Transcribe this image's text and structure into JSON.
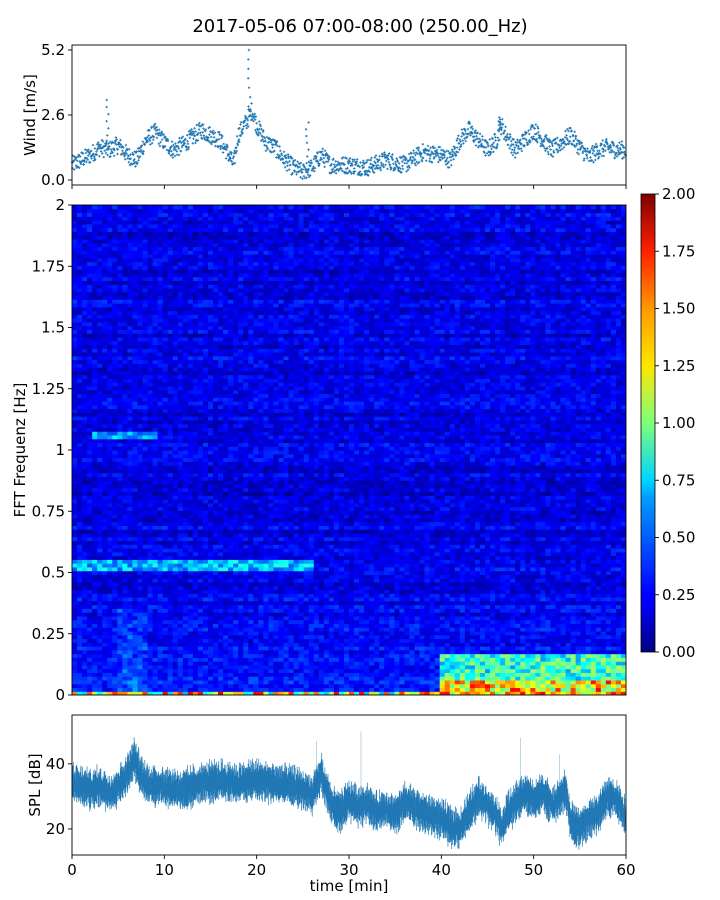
{
  "title": "2017-05-06 07:00-08:00 (250.00_Hz)",
  "chart_data": [
    {
      "type": "scatter",
      "ylabel": "Wind [m/s]",
      "ylim": [
        -0.2,
        5.4
      ],
      "yticks": [
        "0.0",
        "2.6",
        "5.2"
      ],
      "color": "#1f77b4",
      "xlim": [
        0,
        60
      ],
      "trend": [
        [
          0,
          0.6
        ],
        [
          2,
          1.0
        ],
        [
          3,
          1.3
        ],
        [
          4,
          1.2
        ],
        [
          5,
          1.4
        ],
        [
          6,
          1.0
        ],
        [
          7,
          0.8
        ],
        [
          8,
          1.6
        ],
        [
          9,
          1.9
        ],
        [
          10,
          1.5
        ],
        [
          11,
          1.2
        ],
        [
          12,
          1.4
        ],
        [
          13,
          1.7
        ],
        [
          14,
          2.0
        ],
        [
          15,
          1.8
        ],
        [
          16,
          1.6
        ],
        [
          17,
          1.0
        ],
        [
          17.5,
          0.6
        ],
        [
          18,
          1.8
        ],
        [
          19,
          2.4
        ],
        [
          19.5,
          2.8
        ],
        [
          20,
          2.2
        ],
        [
          21,
          1.5
        ],
        [
          22,
          1.3
        ],
        [
          23,
          0.8
        ],
        [
          24,
          0.5
        ],
        [
          25,
          0.3
        ],
        [
          26,
          0.5
        ],
        [
          27,
          1.0
        ],
        [
          28,
          0.6
        ],
        [
          30,
          0.6
        ],
        [
          32,
          0.5
        ],
        [
          34,
          0.8
        ],
        [
          36,
          0.6
        ],
        [
          38,
          1.1
        ],
        [
          40,
          1.0
        ],
        [
          41,
          0.8
        ],
        [
          42,
          1.6
        ],
        [
          43,
          2.0
        ],
        [
          44,
          1.6
        ],
        [
          45,
          1.2
        ],
        [
          46,
          1.6
        ],
        [
          46.5,
          2.2
        ],
        [
          47,
          1.8
        ],
        [
          48,
          1.2
        ],
        [
          49,
          1.6
        ],
        [
          50,
          2.0
        ],
        [
          51,
          1.6
        ],
        [
          52,
          1.2
        ],
        [
          53,
          1.5
        ],
        [
          54,
          1.8
        ],
        [
          55,
          1.3
        ],
        [
          56,
          0.9
        ],
        [
          57,
          1.2
        ],
        [
          58,
          1.3
        ],
        [
          59,
          1.2
        ],
        [
          60,
          1.2
        ]
      ],
      "spikes": [
        [
          3.8,
          3.2
        ],
        [
          19.2,
          5.2
        ],
        [
          25.5,
          2.3
        ],
        [
          46.3,
          2.5
        ]
      ]
    },
    {
      "type": "heatmap",
      "ylabel": "FFT Frequenz [Hz]",
      "ylim": [
        0,
        2
      ],
      "yticks": [
        "0",
        "0.25",
        "0.5",
        "0.75",
        "1",
        "1.25",
        "1.5",
        "1.75",
        "2"
      ],
      "xlim": [
        0,
        60
      ],
      "colorbar": {
        "range": [
          0,
          2
        ],
        "ticks": [
          "0.00",
          "0.25",
          "0.50",
          "0.75",
          "1.00",
          "1.25",
          "1.50",
          "1.75",
          "2.00"
        ],
        "colormap": "jet"
      },
      "features": [
        {
          "band": [
            0.515,
            0.535
          ],
          "x": [
            0,
            26
          ],
          "level": 0.75
        },
        {
          "band": [
            1.04,
            1.06
          ],
          "x": [
            2,
            9
          ],
          "level": 0.7
        },
        {
          "band": [
            0,
            0.05
          ],
          "x": [
            40,
            60
          ],
          "level": 1.6
        },
        {
          "band": [
            0.05,
            0.15
          ],
          "x": [
            40,
            60
          ],
          "level": 1.0
        }
      ]
    },
    {
      "type": "line",
      "ylabel": "SPL [dB]",
      "xlabel": "time [min]",
      "xlim": [
        0,
        60
      ],
      "ylim": [
        12,
        55
      ],
      "yticks": [
        "20",
        "40"
      ],
      "xticks": [
        "0",
        "10",
        "20",
        "30",
        "40",
        "50",
        "60"
      ],
      "color": "#1f77b4",
      "trend": [
        [
          0,
          34
        ],
        [
          1,
          33
        ],
        [
          2,
          32
        ],
        [
          3,
          33
        ],
        [
          4,
          31
        ],
        [
          5,
          33
        ],
        [
          6,
          37
        ],
        [
          6.7,
          42
        ],
        [
          7.5,
          36
        ],
        [
          8,
          34
        ],
        [
          10,
          33
        ],
        [
          12,
          32
        ],
        [
          14,
          34
        ],
        [
          16,
          35
        ],
        [
          18,
          34
        ],
        [
          20,
          35
        ],
        [
          22,
          34
        ],
        [
          24,
          33
        ],
        [
          25,
          32
        ],
        [
          26,
          30
        ],
        [
          27,
          37
        ],
        [
          27.5,
          32
        ],
        [
          28,
          28
        ],
        [
          29,
          25
        ],
        [
          30,
          29
        ],
        [
          31,
          27
        ],
        [
          32,
          28
        ],
        [
          33,
          25
        ],
        [
          34,
          26
        ],
        [
          35,
          24
        ],
        [
          36,
          28
        ],
        [
          37,
          27
        ],
        [
          38,
          25
        ],
        [
          39,
          24
        ],
        [
          40,
          23
        ],
        [
          41,
          21
        ],
        [
          42,
          20
        ],
        [
          43,
          25
        ],
        [
          44,
          30
        ],
        [
          45,
          27
        ],
        [
          46,
          24
        ],
        [
          46.5,
          20
        ],
        [
          47,
          24
        ],
        [
          48,
          28
        ],
        [
          49,
          31
        ],
        [
          50,
          29
        ],
        [
          51,
          31
        ],
        [
          52,
          27
        ],
        [
          53,
          30
        ],
        [
          53.5,
          32
        ],
        [
          54,
          22
        ],
        [
          55,
          20
        ],
        [
          56,
          23
        ],
        [
          57,
          25
        ],
        [
          58,
          30
        ],
        [
          59,
          29
        ],
        [
          59.5,
          26
        ],
        [
          60,
          23
        ]
      ],
      "spikes": [
        [
          26.5,
          47
        ],
        [
          31.3,
          50
        ],
        [
          48.6,
          48
        ],
        [
          52.8,
          43
        ]
      ]
    }
  ]
}
